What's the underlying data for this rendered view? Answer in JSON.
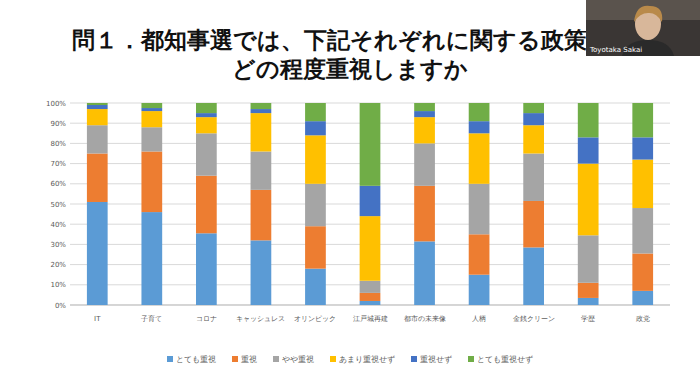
{
  "chart_data": {
    "type": "bar",
    "stacked": true,
    "title": [
      "問１．都知事選では、下記それぞれに関する政策",
      "どの程度重視しますか"
    ],
    "annotations": [
      "Toyotaka Sakai"
    ],
    "categories": [
      "IT",
      "子育て",
      "コロナ",
      "キャッシュレス",
      "オリンピック",
      "江戸城再建",
      "都市の未来像",
      "人柄",
      "金銭クリーン",
      "学歴",
      "政党"
    ],
    "series": [
      {
        "name": "とても重視",
        "color": "#5b9bd5",
        "values": [
          51,
          46,
          35.5,
          32,
          18,
          2,
          31.5,
          15,
          28.5,
          3.5,
          7
        ]
      },
      {
        "name": "重視",
        "color": "#ed7d31",
        "values": [
          24,
          30,
          28.5,
          25,
          21,
          4,
          27.5,
          20,
          23,
          7.5,
          18.5
        ]
      },
      {
        "name": "やや重視",
        "color": "#a5a5a5",
        "values": [
          14,
          12,
          21,
          19,
          21,
          6,
          21,
          25,
          23.5,
          23.5,
          22.5
        ]
      },
      {
        "name": "あまり重視せず",
        "color": "#ffc000",
        "values": [
          8,
          8,
          8,
          19,
          24,
          32,
          13,
          25,
          14,
          35.5,
          24
        ]
      },
      {
        "name": "重視せず",
        "color": "#4472c4",
        "values": [
          2,
          1.5,
          2,
          2,
          7,
          15,
          3,
          6,
          6,
          13,
          11
        ]
      },
      {
        "name": "とても重視せず",
        "color": "#70ad47",
        "values": [
          1,
          2.5,
          5,
          3,
          9,
          41,
          4,
          9,
          5,
          17,
          17
        ]
      }
    ],
    "ylim": [
      0,
      100
    ],
    "yticks": [
      {
        "value": 0,
        "label": "0%"
      },
      {
        "value": 10,
        "label": "10%"
      },
      {
        "value": 20,
        "label": "20%"
      },
      {
        "value": 30,
        "label": "30%"
      },
      {
        "value": 40,
        "label": "40%"
      },
      {
        "value": 50,
        "label": "50%"
      },
      {
        "value": 60,
        "label": "60%"
      },
      {
        "value": 70,
        "label": "70%"
      },
      {
        "value": 80,
        "label": "80%"
      },
      {
        "value": 90,
        "label": "90%"
      },
      {
        "value": 100,
        "label": "100%"
      }
    ],
    "grid": true,
    "legend": "bottom"
  }
}
